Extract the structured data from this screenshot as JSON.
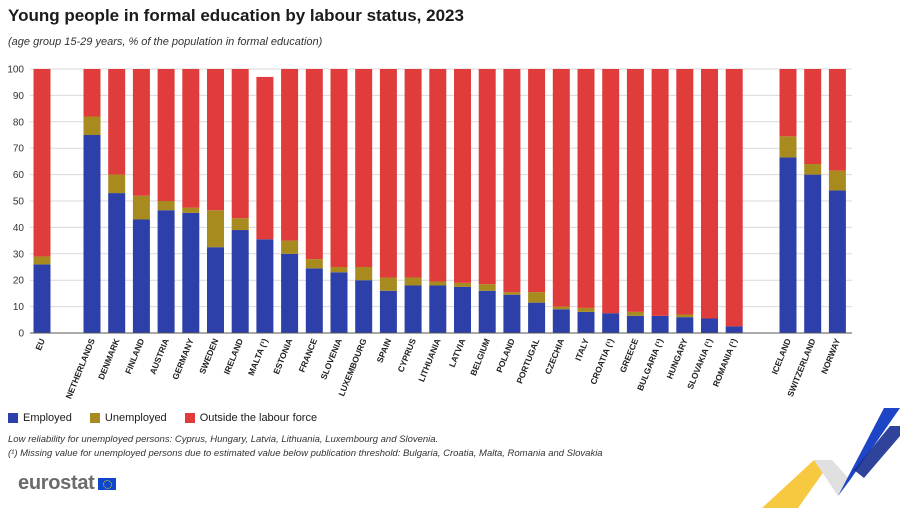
{
  "colors": {
    "employed": "#2d3fa8",
    "unemployed": "#a88b1e",
    "outside": "#e03c3c",
    "grid": "#d9d9d9"
  },
  "legend": {
    "employed": "Employed",
    "unemployed": "Unemployed",
    "outside": "Outside the labour force"
  },
  "notes": {
    "line1": "Low reliability for unemployed persons: Cyprus, Hungary, Latvia, Lithuania, Luxembourg and Slovenia.",
    "line2": "(¹) Missing value for unemployed persons due to estimated value below publication threshold: Bulgaria, Croatia, Malta, Romania and Slovakia"
  },
  "logo": {
    "text": "eurostat"
  },
  "chart_data": {
    "type": "bar",
    "stacked": true,
    "title": "Young people in formal education by labour status, 2023",
    "subtitle": "(age group 15-29 years, % of the population in formal education)",
    "ylim": [
      0,
      100
    ],
    "yticks": [
      0,
      10,
      20,
      30,
      40,
      50,
      60,
      70,
      80,
      90,
      100
    ],
    "grid": true,
    "legend_position": "bottom-left",
    "categories": [
      "EU",
      "NETHERLANDS",
      "DENMARK",
      "FINLAND",
      "AUSTRIA",
      "GERMANY",
      "SWEDEN",
      "IRELAND",
      "MALTA (¹)",
      "ESTONIA",
      "FRANCE",
      "SLOVENIA",
      "LUXEMBOURG",
      "SPAIN",
      "CYPRUS",
      "LITHUANIA",
      "LATVIA",
      "BELGIUM",
      "POLAND",
      "PORTUGAL",
      "CZECHIA",
      "ITALY",
      "CROATIA (¹)",
      "GREECE",
      "BULGARIA (¹)",
      "HUNGARY",
      "SLOVAKIA (¹)",
      "ROMANIA (¹)",
      "ICELAND",
      "SWITZERLAND",
      "NORWAY"
    ],
    "groups": [
      1,
      27,
      3
    ],
    "series": [
      {
        "name": "Employed",
        "values": [
          26,
          75,
          53,
          43,
          46.5,
          45.5,
          32.5,
          39,
          35.5,
          30,
          24.5,
          23,
          20,
          16,
          18,
          18,
          17.5,
          16,
          14.5,
          11.5,
          9,
          8,
          7.5,
          6.5,
          6.5,
          6,
          5.5,
          2.5,
          66.5,
          60,
          54
        ]
      },
      {
        "name": "Unemployed",
        "values": [
          3,
          7,
          7,
          9,
          3.5,
          2,
          14,
          4.5,
          0,
          5,
          3.5,
          2,
          5,
          5,
          3,
          1.5,
          1.5,
          2.5,
          1,
          4,
          1,
          1.5,
          0,
          1.5,
          0,
          1,
          0,
          0,
          8,
          4,
          7.5
        ]
      },
      {
        "name": "Outside the labour force",
        "values": [
          71,
          18,
          40,
          48,
          50,
          52.5,
          53.5,
          56.5,
          61.5,
          65,
          72,
          75,
          75,
          79,
          79,
          80.5,
          81,
          81.5,
          84.5,
          84.5,
          90,
          90.5,
          92.5,
          92,
          93.5,
          93,
          94.5,
          97.5,
          25.5,
          36,
          38.5
        ]
      }
    ]
  }
}
